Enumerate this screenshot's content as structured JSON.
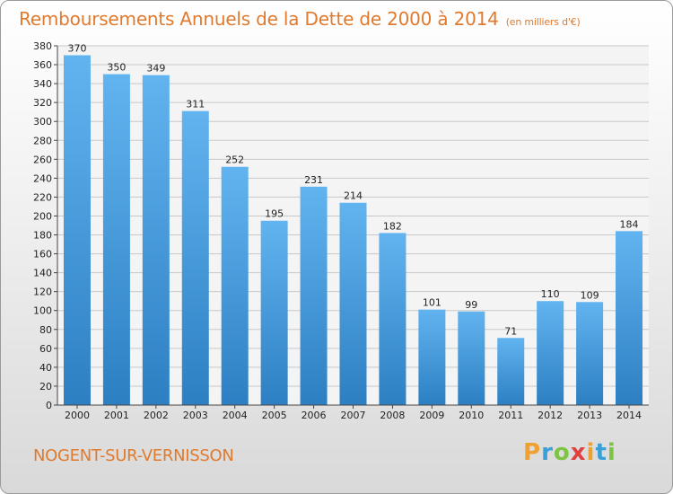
{
  "header": {
    "title": "Remboursements Annuels de la Dette de 2000 à 2014",
    "unit": "(en milliers d'€)"
  },
  "footer": {
    "place": "NOGENT-SUR-VERNISSON",
    "logo": {
      "letters": [
        "P",
        "r",
        "o",
        "x",
        "i",
        "t",
        "i"
      ],
      "colors": [
        "#f0a030",
        "#3aa0d8",
        "#7cc442",
        "#e04040",
        "#f0a030",
        "#3aa0d8",
        "#7cc442"
      ]
    }
  },
  "colors": {
    "bar_top": "#62b4f0",
    "bar_bottom": "#2c7fc2",
    "grid": "#c8c8c8"
  },
  "chart_data": {
    "type": "bar",
    "title": "Remboursements Annuels de la Dette de 2000 à 2014",
    "subtitle": "(en milliers d'€)",
    "categories": [
      "2000",
      "2001",
      "2002",
      "2003",
      "2004",
      "2005",
      "2006",
      "2007",
      "2008",
      "2009",
      "2010",
      "2011",
      "2012",
      "2013",
      "2014"
    ],
    "values": [
      370,
      350,
      349,
      311,
      252,
      195,
      231,
      214,
      182,
      101,
      99,
      71,
      110,
      109,
      184
    ],
    "data_labels": [
      "370",
      "350",
      "349",
      "311",
      "252",
      "195",
      "231",
      "214",
      "182",
      "101",
      "99",
      "71",
      "110",
      "109",
      "184"
    ],
    "y_ticks": [
      "0",
      "20",
      "40",
      "60",
      "80",
      "100",
      "120",
      "140",
      "160",
      "180",
      "200",
      "220",
      "240",
      "260",
      "280",
      "300",
      "320",
      "340",
      "360",
      "380"
    ],
    "ylim": [
      0,
      380
    ],
    "grid": true,
    "xlabel": "",
    "ylabel": ""
  }
}
